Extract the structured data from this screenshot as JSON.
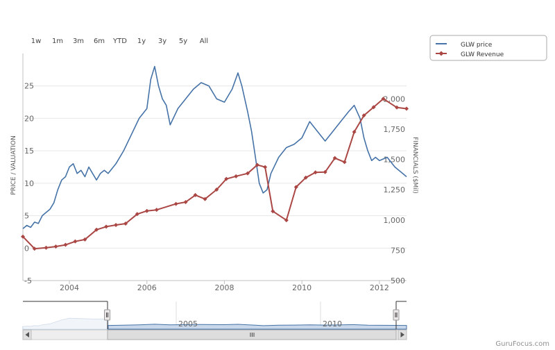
{
  "range_selector": [
    "1w",
    "1m",
    "3m",
    "6m",
    "YTD",
    "1y",
    "3y",
    "5y",
    "All"
  ],
  "legend": [
    {
      "label": "GLW price",
      "color": "#4572a7"
    },
    {
      "label": "GLW Revenue",
      "color": "#aa4643"
    }
  ],
  "watermark": "GuruFocus.com",
  "chart_data": {
    "type": "line",
    "xlabel": "",
    "ylabel_left": "PRICE / VALUATION",
    "ylabel_right": "FINANCIALS ($Mil)",
    "x_ticks": [
      "2004",
      "2006",
      "2008",
      "2010",
      "2012"
    ],
    "navigator_ticks": [
      "2005",
      "2010"
    ],
    "y_left": {
      "min": -5,
      "max": 30,
      "ticks": [
        -5,
        0,
        5,
        10,
        15,
        20,
        25
      ]
    },
    "y_right": {
      "min": 500,
      "max": 2375,
      "ticks": [
        "500",
        "750",
        "1,000",
        "1,250",
        "1,500",
        "1,750",
        "2,000"
      ]
    },
    "series": [
      {
        "name": "GLW price",
        "axis": "left",
        "color": "#4572a7",
        "points": [
          [
            2002.8,
            3.0
          ],
          [
            2002.9,
            3.5
          ],
          [
            2003.0,
            3.2
          ],
          [
            2003.1,
            4.0
          ],
          [
            2003.2,
            3.8
          ],
          [
            2003.3,
            5.0
          ],
          [
            2003.4,
            5.5
          ],
          [
            2003.5,
            6.0
          ],
          [
            2003.6,
            7.0
          ],
          [
            2003.7,
            9.0
          ],
          [
            2003.8,
            10.5
          ],
          [
            2003.9,
            11.0
          ],
          [
            2004.0,
            12.5
          ],
          [
            2004.1,
            13.0
          ],
          [
            2004.2,
            11.5
          ],
          [
            2004.3,
            12.0
          ],
          [
            2004.4,
            11.0
          ],
          [
            2004.5,
            12.5
          ],
          [
            2004.6,
            11.5
          ],
          [
            2004.7,
            10.5
          ],
          [
            2004.8,
            11.5
          ],
          [
            2004.9,
            12.0
          ],
          [
            2005.0,
            11.5
          ],
          [
            2005.2,
            13.0
          ],
          [
            2005.4,
            15.0
          ],
          [
            2005.6,
            17.5
          ],
          [
            2005.8,
            20.0
          ],
          [
            2006.0,
            21.5
          ],
          [
            2006.1,
            26.0
          ],
          [
            2006.2,
            28.0
          ],
          [
            2006.3,
            25.0
          ],
          [
            2006.4,
            23.0
          ],
          [
            2006.5,
            22.0
          ],
          [
            2006.6,
            19.0
          ],
          [
            2006.8,
            21.5
          ],
          [
            2007.0,
            23.0
          ],
          [
            2007.2,
            24.5
          ],
          [
            2007.4,
            25.5
          ],
          [
            2007.6,
            25.0
          ],
          [
            2007.8,
            23.0
          ],
          [
            2008.0,
            22.5
          ],
          [
            2008.2,
            24.5
          ],
          [
            2008.35,
            27.0
          ],
          [
            2008.45,
            25.0
          ],
          [
            2008.6,
            21.0
          ],
          [
            2008.7,
            18.0
          ],
          [
            2008.8,
            14.0
          ],
          [
            2008.9,
            10.0
          ],
          [
            2009.0,
            8.5
          ],
          [
            2009.1,
            9.0
          ],
          [
            2009.2,
            11.5
          ],
          [
            2009.4,
            14.0
          ],
          [
            2009.6,
            15.5
          ],
          [
            2009.8,
            16.0
          ],
          [
            2010.0,
            17.0
          ],
          [
            2010.2,
            19.5
          ],
          [
            2010.4,
            18.0
          ],
          [
            2010.6,
            16.5
          ],
          [
            2010.8,
            18.0
          ],
          [
            2011.0,
            19.5
          ],
          [
            2011.2,
            21.0
          ],
          [
            2011.35,
            22.0
          ],
          [
            2011.5,
            20.0
          ],
          [
            2011.6,
            17.0
          ],
          [
            2011.7,
            15.0
          ],
          [
            2011.8,
            13.5
          ],
          [
            2011.9,
            14.0
          ],
          [
            2012.0,
            13.5
          ],
          [
            2012.2,
            14.0
          ],
          [
            2012.4,
            12.5
          ],
          [
            2012.6,
            11.5
          ],
          [
            2012.7,
            11.0
          ]
        ]
      },
      {
        "name": "GLW Revenue",
        "axis": "right",
        "color": "#aa4643",
        "points": [
          [
            2002.8,
            863
          ],
          [
            2003.1,
            763
          ],
          [
            2003.4,
            771
          ],
          [
            2003.65,
            781
          ],
          [
            2003.9,
            795
          ],
          [
            2004.15,
            823
          ],
          [
            2004.4,
            839
          ],
          [
            2004.7,
            920
          ],
          [
            2004.95,
            945
          ],
          [
            2005.2,
            959
          ],
          [
            2005.45,
            970
          ],
          [
            2005.75,
            1049
          ],
          [
            2006.0,
            1075
          ],
          [
            2006.25,
            1084
          ],
          [
            2006.75,
            1133
          ],
          [
            2007.0,
            1148
          ],
          [
            2007.25,
            1206
          ],
          [
            2007.5,
            1173
          ],
          [
            2007.8,
            1251
          ],
          [
            2008.05,
            1339
          ],
          [
            2008.3,
            1361
          ],
          [
            2008.6,
            1385
          ],
          [
            2008.85,
            1455
          ],
          [
            2009.05,
            1437
          ],
          [
            2009.25,
            1072
          ],
          [
            2009.6,
            998
          ],
          [
            2009.85,
            1272
          ],
          [
            2010.1,
            1350
          ],
          [
            2010.35,
            1393
          ],
          [
            2010.6,
            1396
          ],
          [
            2010.85,
            1511
          ],
          [
            2011.1,
            1478
          ],
          [
            2011.35,
            1727
          ],
          [
            2011.6,
            1863
          ],
          [
            2011.85,
            1931
          ],
          [
            2012.1,
            2001
          ],
          [
            2012.45,
            1929
          ],
          [
            2012.7,
            1919
          ]
        ]
      }
    ],
    "navigator_series": [
      [
        2002.8,
        3
      ],
      [
        2002.9,
        3.5
      ],
      [
        2003.0,
        3.2
      ],
      [
        2003.1,
        4
      ],
      [
        2003.2,
        3.8
      ],
      [
        2003.3,
        5
      ],
      [
        2003.5,
        6
      ],
      [
        2003.8,
        10.5
      ],
      [
        2004.0,
        12.5
      ],
      [
        2004.3,
        12
      ],
      [
        2004.6,
        11.5
      ],
      [
        2005.0,
        11.5
      ],
      [
        2005.4,
        15
      ],
      [
        2005.8,
        20
      ],
      [
        2006.2,
        28
      ],
      [
        2006.6,
        19
      ],
      [
        2007.0,
        23
      ],
      [
        2007.4,
        25.5
      ],
      [
        2008.0,
        22.5
      ],
      [
        2008.35,
        27
      ],
      [
        2008.8,
        14
      ],
      [
        2009.0,
        8.5
      ],
      [
        2009.4,
        14
      ],
      [
        2009.8,
        16
      ],
      [
        2010.2,
        19.5
      ],
      [
        2010.6,
        16.5
      ],
      [
        2011.0,
        19.5
      ],
      [
        2011.35,
        22
      ],
      [
        2011.7,
        15
      ],
      [
        2012.0,
        13.5
      ],
      [
        2012.4,
        12.5
      ],
      [
        2012.7,
        11
      ]
    ]
  }
}
